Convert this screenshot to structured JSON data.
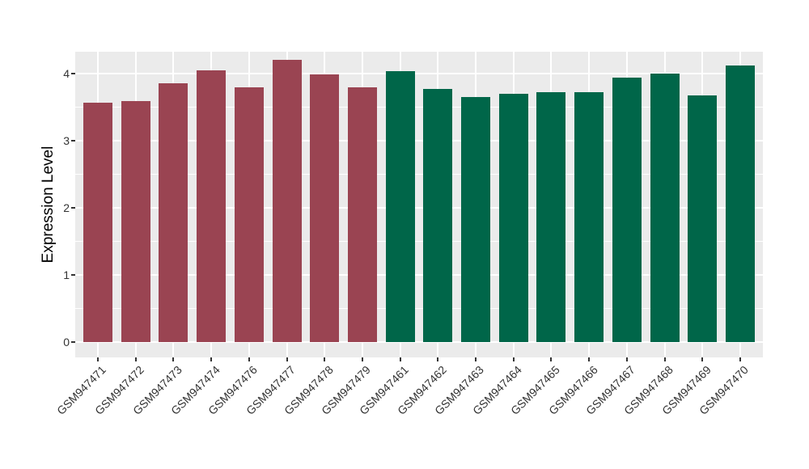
{
  "chart_data": {
    "type": "bar",
    "title": "",
    "xlabel": "",
    "ylabel": "Expression Level",
    "categories": [
      "GSM947471",
      "GSM947472",
      "GSM947473",
      "GSM947474",
      "GSM947476",
      "GSM947477",
      "GSM947478",
      "GSM947479",
      "GSM947461",
      "GSM947462",
      "GSM947463",
      "GSM947464",
      "GSM947465",
      "GSM947466",
      "GSM947467",
      "GSM947468",
      "GSM947469",
      "GSM947470"
    ],
    "values": [
      3.57,
      3.6,
      3.86,
      4.05,
      3.8,
      4.21,
      3.99,
      3.8,
      4.04,
      3.78,
      3.66,
      3.7,
      3.73,
      3.73,
      3.95,
      4.0,
      3.68,
      4.12
    ],
    "groups": [
      "A",
      "A",
      "A",
      "A",
      "A",
      "A",
      "A",
      "A",
      "B",
      "B",
      "B",
      "B",
      "B",
      "B",
      "B",
      "B",
      "B",
      "B"
    ],
    "group_colors": {
      "A": "#9a4452",
      "B": "#006649"
    },
    "yticks": [
      0,
      1,
      2,
      3,
      4
    ],
    "ylim": [
      0,
      4.56
    ],
    "grid": true,
    "legend_position": "none",
    "panel_background": "#ebebeb",
    "gridline_color": "#ffffff",
    "axis_text_color": "#333333"
  }
}
